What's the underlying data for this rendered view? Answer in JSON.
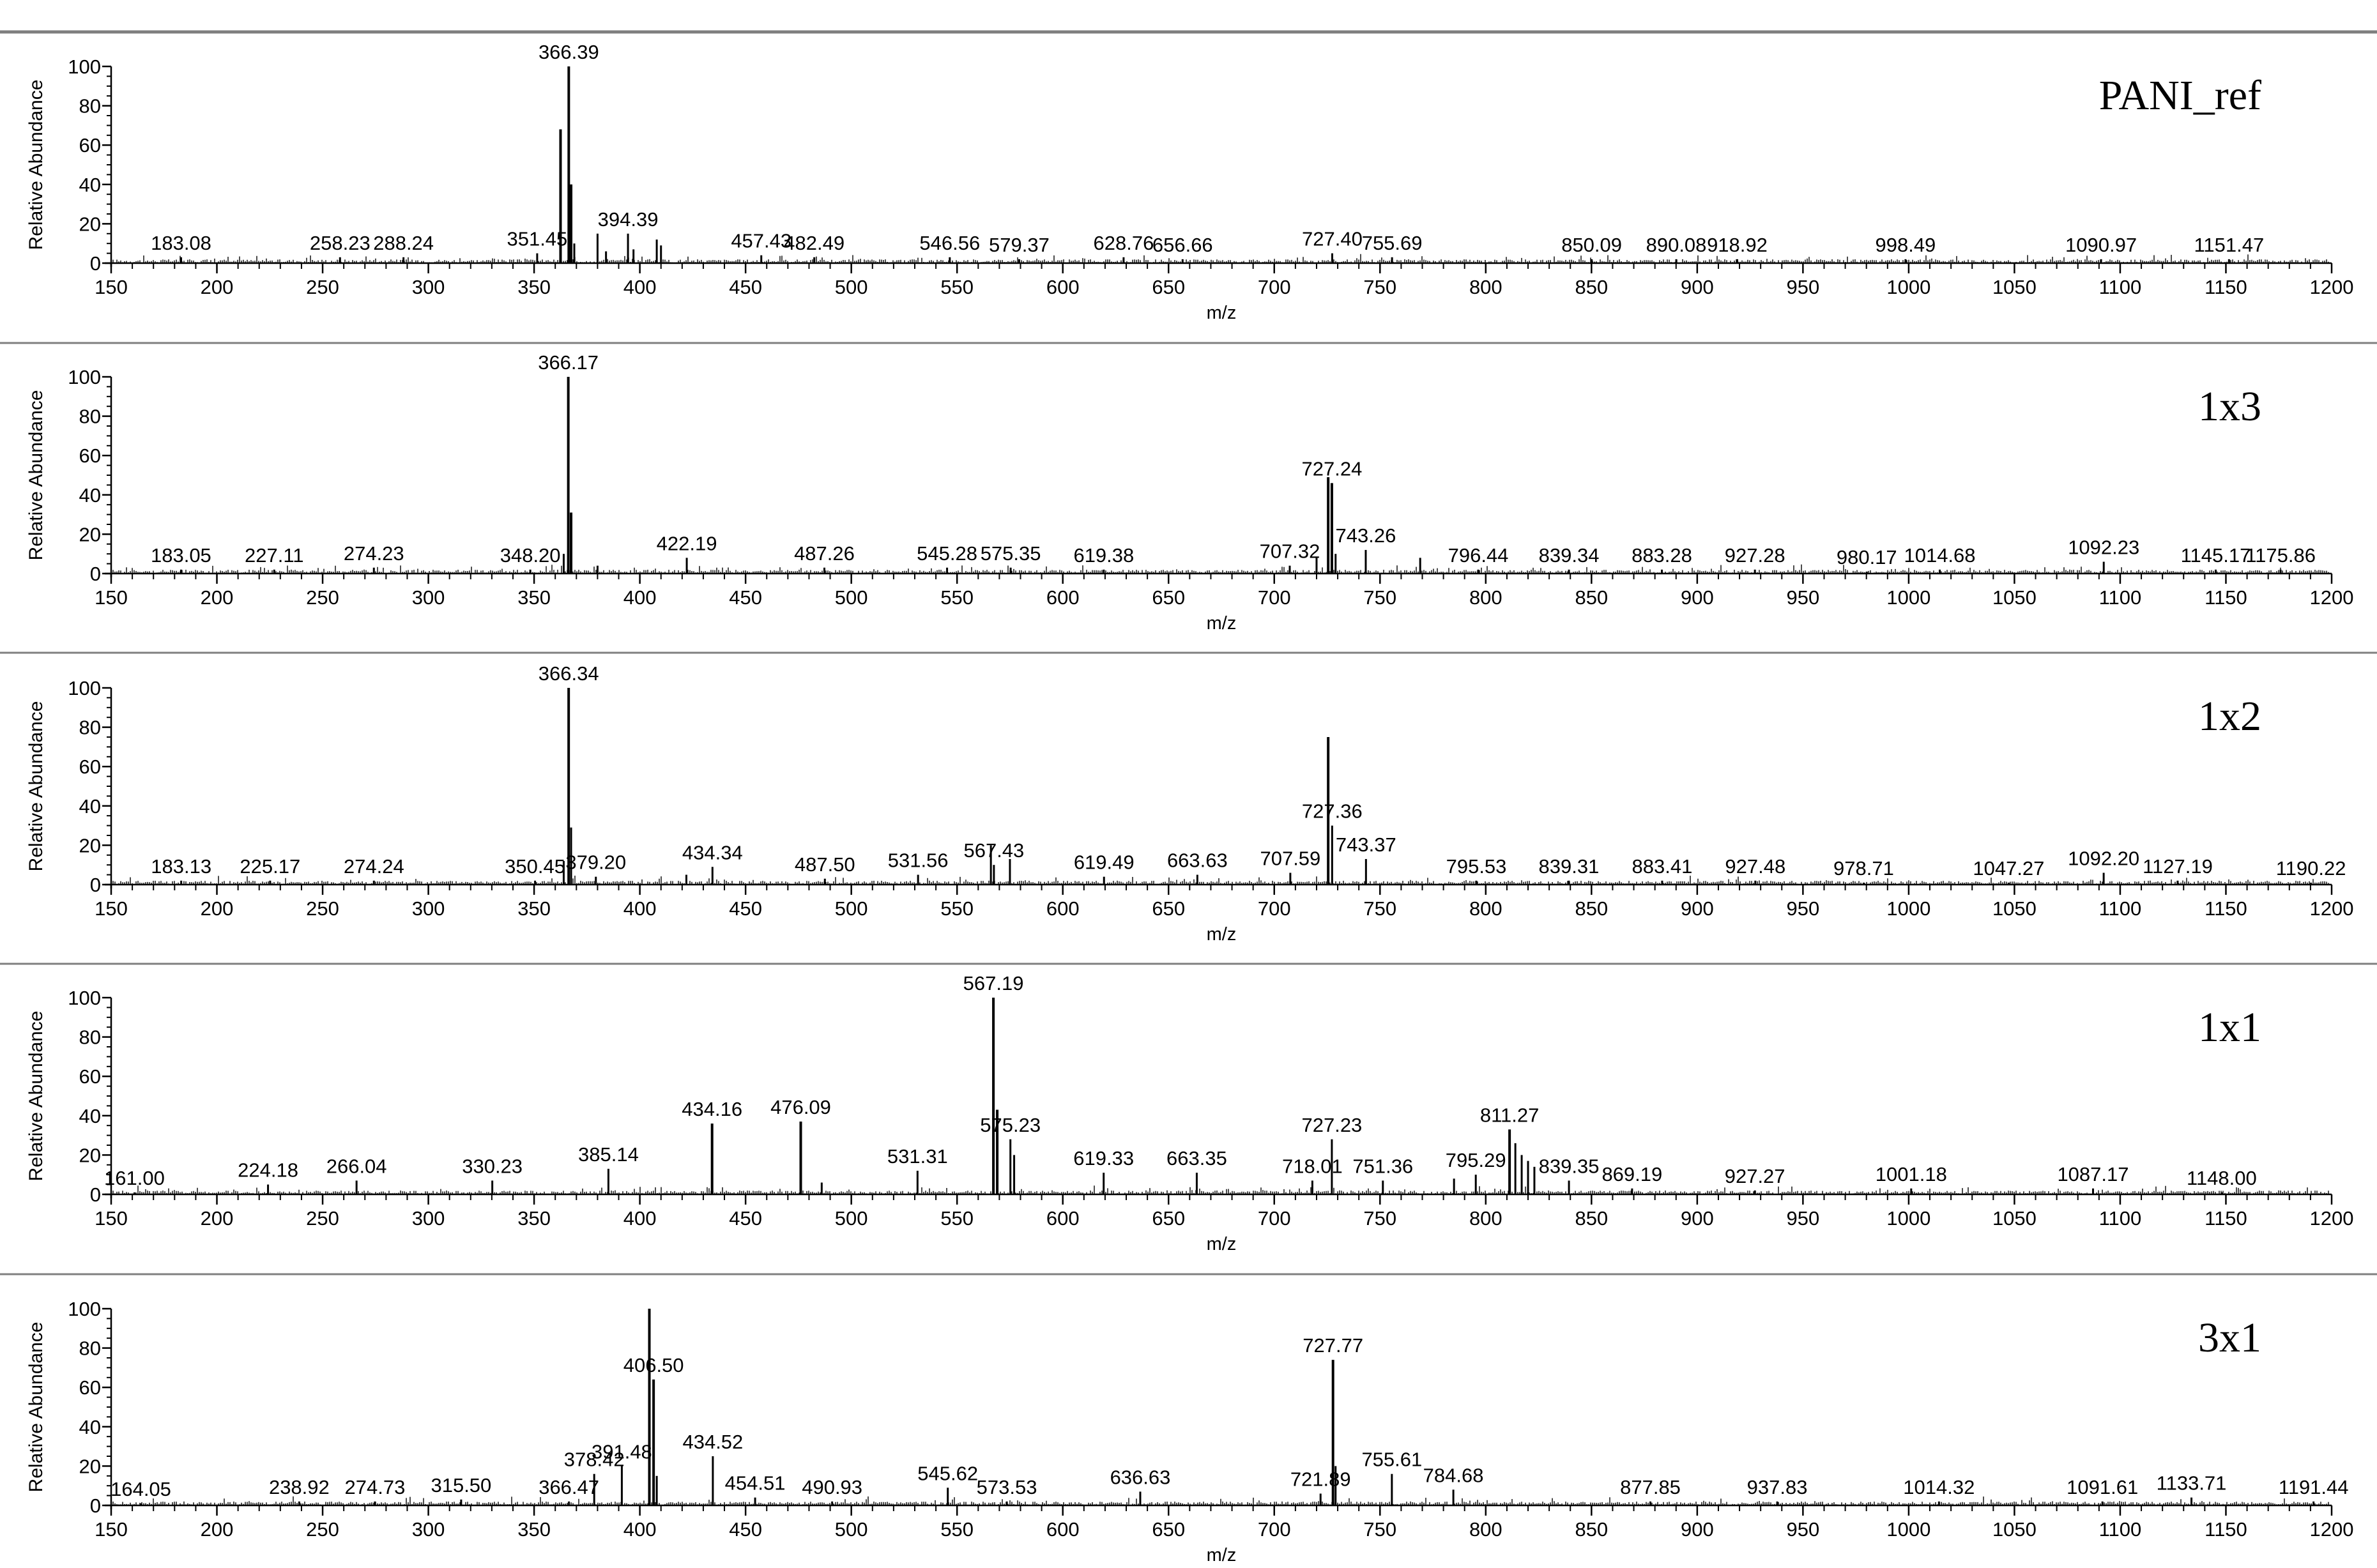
{
  "chart_data": [
    {
      "type": "line",
      "title": "PANI_ref",
      "xlabel": "m/z",
      "ylabel": "Relative Abundance",
      "xlim": [
        150,
        1200
      ],
      "ylim": [
        0,
        100
      ],
      "xticks": [
        150,
        200,
        250,
        300,
        350,
        400,
        450,
        500,
        550,
        600,
        650,
        700,
        750,
        800,
        850,
        900,
        950,
        1000,
        1050,
        1100,
        1150,
        1200
      ],
      "yticks": [
        0,
        20,
        40,
        60,
        80,
        100
      ],
      "peaks": [
        {
          "mz": 183.08,
          "label": "183.08",
          "y": 3
        },
        {
          "mz": 258.23,
          "label": "258.23",
          "y": 3
        },
        {
          "mz": 288.24,
          "label": "288.24",
          "y": 3
        },
        {
          "mz": 351.45,
          "label": "351.45",
          "y": 5
        },
        {
          "mz": 362.5,
          "label": "",
          "y": 68
        },
        {
          "mz": 366.39,
          "label": "366.39",
          "y": 100
        },
        {
          "mz": 367.5,
          "label": "",
          "y": 40
        },
        {
          "mz": 369,
          "label": "",
          "y": 10
        },
        {
          "mz": 380,
          "label": "",
          "y": 15
        },
        {
          "mz": 384,
          "label": "",
          "y": 6
        },
        {
          "mz": 394.39,
          "label": "394.39",
          "y": 15
        },
        {
          "mz": 397,
          "label": "",
          "y": 7
        },
        {
          "mz": 408,
          "label": "",
          "y": 12
        },
        {
          "mz": 410,
          "label": "",
          "y": 9
        },
        {
          "mz": 457.43,
          "label": "457.43",
          "y": 4
        },
        {
          "mz": 482.49,
          "label": "482.49",
          "y": 3
        },
        {
          "mz": 546.56,
          "label": "546.56",
          "y": 3
        },
        {
          "mz": 579.37,
          "label": "579.37",
          "y": 2
        },
        {
          "mz": 628.76,
          "label": "628.76",
          "y": 3
        },
        {
          "mz": 656.66,
          "label": "656.66",
          "y": 2
        },
        {
          "mz": 727.4,
          "label": "727.40",
          "y": 5
        },
        {
          "mz": 755.69,
          "label": "755.69",
          "y": 3
        },
        {
          "mz": 850.09,
          "label": "850.09",
          "y": 2
        },
        {
          "mz": 890.08,
          "label": "890.08",
          "y": 2
        },
        {
          "mz": 918.92,
          "label": "918.92",
          "y": 2
        },
        {
          "mz": 998.49,
          "label": "998.49",
          "y": 2
        },
        {
          "mz": 1090.97,
          "label": "1090.97",
          "y": 2
        },
        {
          "mz": 1151.47,
          "label": "1151.47",
          "y": 2
        }
      ]
    },
    {
      "type": "line",
      "title": "1x3",
      "xlabel": "m/z",
      "ylabel": "Relative Abundance",
      "xlim": [
        150,
        1200
      ],
      "ylim": [
        0,
        100
      ],
      "xticks": [
        150,
        200,
        250,
        300,
        350,
        400,
        450,
        500,
        550,
        600,
        650,
        700,
        750,
        800,
        850,
        900,
        950,
        1000,
        1050,
        1100,
        1150,
        1200
      ],
      "yticks": [
        0,
        20,
        40,
        60,
        80,
        100
      ],
      "peaks": [
        {
          "mz": 183.05,
          "label": "183.05",
          "y": 2
        },
        {
          "mz": 227.11,
          "label": "227.11",
          "y": 2
        },
        {
          "mz": 274.23,
          "label": "274.23",
          "y": 3
        },
        {
          "mz": 348.2,
          "label": "348.20",
          "y": 2
        },
        {
          "mz": 364,
          "label": "",
          "y": 10
        },
        {
          "mz": 366.17,
          "label": "366.17",
          "y": 100
        },
        {
          "mz": 367.5,
          "label": "",
          "y": 31
        },
        {
          "mz": 380,
          "label": "",
          "y": 4
        },
        {
          "mz": 422.19,
          "label": "422.19",
          "y": 8
        },
        {
          "mz": 487.26,
          "label": "487.26",
          "y": 3
        },
        {
          "mz": 545.28,
          "label": "545.28",
          "y": 3
        },
        {
          "mz": 575.35,
          "label": "575.35",
          "y": 3
        },
        {
          "mz": 619.38,
          "label": "619.38",
          "y": 2
        },
        {
          "mz": 707.32,
          "label": "707.32",
          "y": 4
        },
        {
          "mz": 720,
          "label": "",
          "y": 8
        },
        {
          "mz": 725.5,
          "label": "",
          "y": 49
        },
        {
          "mz": 727.24,
          "label": "727.24",
          "y": 46
        },
        {
          "mz": 729,
          "label": "",
          "y": 10
        },
        {
          "mz": 743.26,
          "label": "743.26",
          "y": 12
        },
        {
          "mz": 769,
          "label": "",
          "y": 8
        },
        {
          "mz": 796.44,
          "label": "796.44",
          "y": 2
        },
        {
          "mz": 839.34,
          "label": "839.34",
          "y": 2
        },
        {
          "mz": 883.28,
          "label": "883.28",
          "y": 2
        },
        {
          "mz": 927.28,
          "label": "927.28",
          "y": 2
        },
        {
          "mz": 980.17,
          "label": "980.17",
          "y": 1
        },
        {
          "mz": 1014.68,
          "label": "1014.68",
          "y": 2
        },
        {
          "mz": 1092.23,
          "label": "1092.23",
          "y": 6
        },
        {
          "mz": 1145.17,
          "label": "1145.17",
          "y": 2
        },
        {
          "mz": 1175.86,
          "label": "1175.86",
          "y": 2
        }
      ]
    },
    {
      "type": "line",
      "title": "1x2",
      "xlabel": "m/z",
      "ylabel": "Relative Abundance",
      "xlim": [
        150,
        1200
      ],
      "ylim": [
        0,
        100
      ],
      "xticks": [
        150,
        200,
        250,
        300,
        350,
        400,
        450,
        500,
        550,
        600,
        650,
        700,
        750,
        800,
        850,
        900,
        950,
        1000,
        1050,
        1100,
        1150,
        1200
      ],
      "yticks": [
        0,
        20,
        40,
        60,
        80,
        100
      ],
      "peaks": [
        {
          "mz": 183.13,
          "label": "183.13",
          "y": 2
        },
        {
          "mz": 225.17,
          "label": "225.17",
          "y": 2
        },
        {
          "mz": 274.24,
          "label": "274.24",
          "y": 2
        },
        {
          "mz": 350.45,
          "label": "350.45",
          "y": 2
        },
        {
          "mz": 364,
          "label": "",
          "y": 12
        },
        {
          "mz": 366.34,
          "label": "366.34",
          "y": 100
        },
        {
          "mz": 367.5,
          "label": "",
          "y": 29
        },
        {
          "mz": 379.2,
          "label": "379.20",
          "y": 4
        },
        {
          "mz": 422,
          "label": "",
          "y": 5
        },
        {
          "mz": 434.34,
          "label": "434.34",
          "y": 9
        },
        {
          "mz": 487.5,
          "label": "487.50",
          "y": 3
        },
        {
          "mz": 531.56,
          "label": "531.56",
          "y": 5
        },
        {
          "mz": 566,
          "label": "",
          "y": 20
        },
        {
          "mz": 567.43,
          "label": "567.43",
          "y": 10
        },
        {
          "mz": 575,
          "label": "",
          "y": 13
        },
        {
          "mz": 619.49,
          "label": "619.49",
          "y": 4
        },
        {
          "mz": 663.63,
          "label": "663.63",
          "y": 5
        },
        {
          "mz": 707.59,
          "label": "707.59",
          "y": 6
        },
        {
          "mz": 725.5,
          "label": "",
          "y": 75
        },
        {
          "mz": 727.36,
          "label": "727.36",
          "y": 30
        },
        {
          "mz": 743.37,
          "label": "743.37",
          "y": 13
        },
        {
          "mz": 795.53,
          "label": "795.53",
          "y": 2
        },
        {
          "mz": 839.31,
          "label": "839.31",
          "y": 2
        },
        {
          "mz": 883.41,
          "label": "883.41",
          "y": 2
        },
        {
          "mz": 927.48,
          "label": "927.48",
          "y": 2
        },
        {
          "mz": 978.71,
          "label": "978.71",
          "y": 1
        },
        {
          "mz": 1047.27,
          "label": "1047.27",
          "y": 1
        },
        {
          "mz": 1092.2,
          "label": "1092.20",
          "y": 6
        },
        {
          "mz": 1127.19,
          "label": "1127.19",
          "y": 2
        },
        {
          "mz": 1190.22,
          "label": "1190.22",
          "y": 1
        }
      ]
    },
    {
      "type": "line",
      "title": "1x1",
      "xlabel": "m/z",
      "ylabel": "Relative Abundance",
      "xlim": [
        150,
        1200
      ],
      "ylim": [
        0,
        100
      ],
      "xticks": [
        150,
        200,
        250,
        300,
        350,
        400,
        450,
        500,
        550,
        600,
        650,
        700,
        750,
        800,
        850,
        900,
        950,
        1000,
        1050,
        1100,
        1150,
        1200
      ],
      "yticks": [
        0,
        20,
        40,
        60,
        80,
        100
      ],
      "peaks": [
        {
          "mz": 161.0,
          "label": "161.00",
          "y": 1
        },
        {
          "mz": 224.18,
          "label": "224.18",
          "y": 5
        },
        {
          "mz": 266.04,
          "label": "266.04",
          "y": 7
        },
        {
          "mz": 330.23,
          "label": "330.23",
          "y": 7
        },
        {
          "mz": 385.14,
          "label": "385.14",
          "y": 13
        },
        {
          "mz": 434.16,
          "label": "434.16",
          "y": 36
        },
        {
          "mz": 476.09,
          "label": "476.09",
          "y": 37
        },
        {
          "mz": 486,
          "label": "",
          "y": 6
        },
        {
          "mz": 531.31,
          "label": "531.31",
          "y": 12
        },
        {
          "mz": 567.19,
          "label": "567.19",
          "y": 100
        },
        {
          "mz": 569,
          "label": "",
          "y": 43
        },
        {
          "mz": 575.23,
          "label": "575.23",
          "y": 28
        },
        {
          "mz": 577,
          "label": "",
          "y": 20
        },
        {
          "mz": 619.33,
          "label": "619.33",
          "y": 11
        },
        {
          "mz": 663.35,
          "label": "663.35",
          "y": 11
        },
        {
          "mz": 718.01,
          "label": "718.01",
          "y": 7
        },
        {
          "mz": 727.23,
          "label": "727.23",
          "y": 28
        },
        {
          "mz": 751.36,
          "label": "751.36",
          "y": 7
        },
        {
          "mz": 785,
          "label": "",
          "y": 8
        },
        {
          "mz": 795.29,
          "label": "795.29",
          "y": 10
        },
        {
          "mz": 811.27,
          "label": "811.27",
          "y": 33
        },
        {
          "mz": 814,
          "label": "",
          "y": 26
        },
        {
          "mz": 817,
          "label": "",
          "y": 20
        },
        {
          "mz": 820,
          "label": "",
          "y": 17
        },
        {
          "mz": 823,
          "label": "",
          "y": 14
        },
        {
          "mz": 839.35,
          "label": "839.35",
          "y": 7
        },
        {
          "mz": 869.19,
          "label": "869.19",
          "y": 3
        },
        {
          "mz": 927.27,
          "label": "927.27",
          "y": 2
        },
        {
          "mz": 1001.18,
          "label": "1001.18",
          "y": 3
        },
        {
          "mz": 1087.17,
          "label": "1087.17",
          "y": 3
        },
        {
          "mz": 1148.0,
          "label": "1148.00",
          "y": 1
        }
      ]
    },
    {
      "type": "line",
      "title": "3x1",
      "xlabel": "m/z",
      "ylabel": "Relative Abundance",
      "xlim": [
        150,
        1200
      ],
      "ylim": [
        0,
        100
      ],
      "xticks": [
        150,
        200,
        250,
        300,
        350,
        400,
        450,
        500,
        550,
        600,
        650,
        700,
        750,
        800,
        850,
        900,
        950,
        1000,
        1050,
        1100,
        1150,
        1200
      ],
      "yticks": [
        0,
        20,
        40,
        60,
        80,
        100
      ],
      "peaks": [
        {
          "mz": 164.05,
          "label": "164.05",
          "y": 1
        },
        {
          "mz": 238.92,
          "label": "238.92",
          "y": 2
        },
        {
          "mz": 274.73,
          "label": "274.73",
          "y": 2
        },
        {
          "mz": 315.5,
          "label": "315.50",
          "y": 3
        },
        {
          "mz": 366.47,
          "label": "366.47",
          "y": 2
        },
        {
          "mz": 378.42,
          "label": "378.42",
          "y": 16
        },
        {
          "mz": 391.48,
          "label": "391.48",
          "y": 20
        },
        {
          "mz": 404.5,
          "label": "",
          "y": 100
        },
        {
          "mz": 406.5,
          "label": "406.50",
          "y": 64
        },
        {
          "mz": 408,
          "label": "",
          "y": 15
        },
        {
          "mz": 434.52,
          "label": "434.52",
          "y": 25
        },
        {
          "mz": 454.51,
          "label": "454.51",
          "y": 4
        },
        {
          "mz": 490.93,
          "label": "490.93",
          "y": 2
        },
        {
          "mz": 545.62,
          "label": "545.62",
          "y": 9
        },
        {
          "mz": 573.53,
          "label": "573.53",
          "y": 2
        },
        {
          "mz": 636.63,
          "label": "636.63",
          "y": 7
        },
        {
          "mz": 721.89,
          "label": "721.89",
          "y": 6
        },
        {
          "mz": 727.77,
          "label": "727.77",
          "y": 74
        },
        {
          "mz": 729,
          "label": "",
          "y": 20
        },
        {
          "mz": 755.61,
          "label": "755.61",
          "y": 16
        },
        {
          "mz": 784.68,
          "label": "784.68",
          "y": 8
        },
        {
          "mz": 877.85,
          "label": "877.85",
          "y": 2
        },
        {
          "mz": 937.83,
          "label": "937.83",
          "y": 2
        },
        {
          "mz": 1014.32,
          "label": "1014.32",
          "y": 2
        },
        {
          "mz": 1091.61,
          "label": "1091.61",
          "y": 2
        },
        {
          "mz": 1133.71,
          "label": "1133.71",
          "y": 4
        },
        {
          "mz": 1191.44,
          "label": "1191.44",
          "y": 2
        }
      ]
    }
  ]
}
